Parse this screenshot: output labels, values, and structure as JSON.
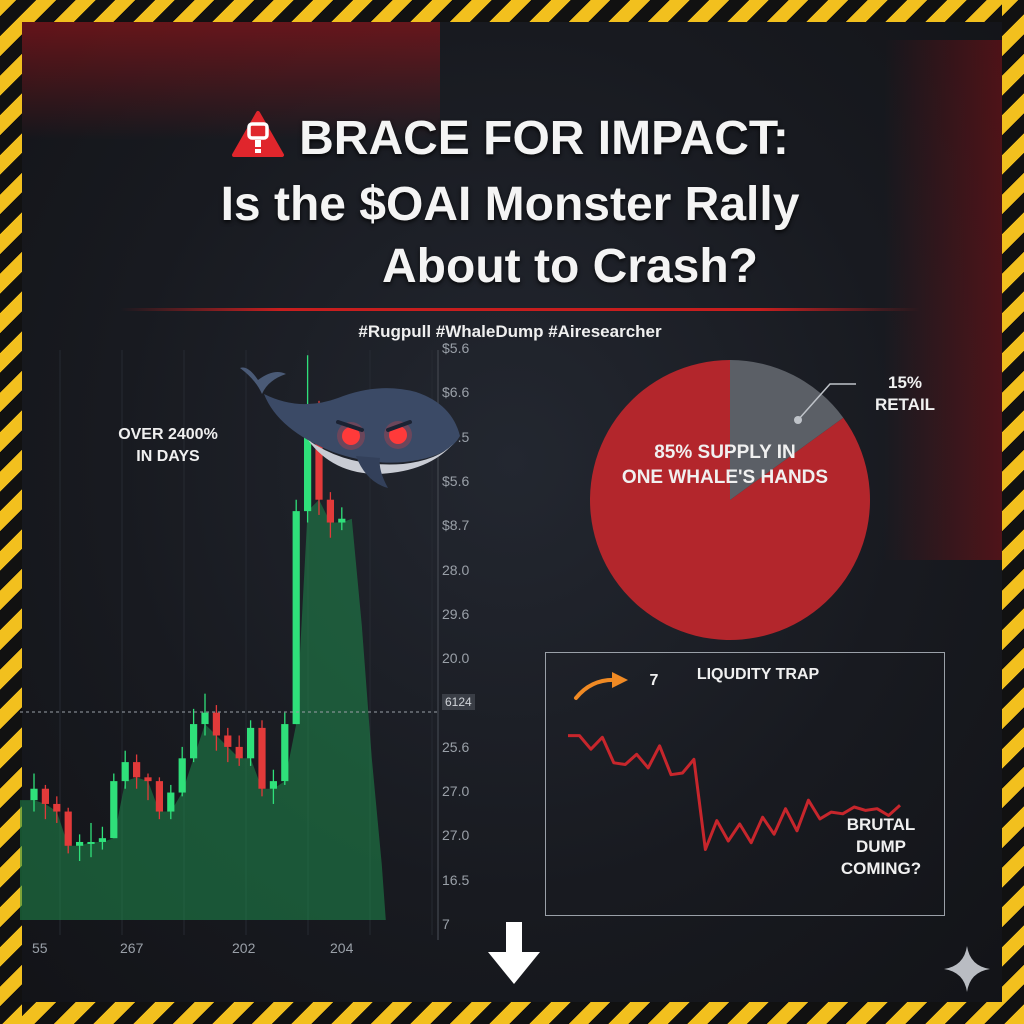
{
  "header": {
    "title_line1": "BRACE FOR IMPACT:",
    "title_line2": "Is the $OAI Monster Rally",
    "title_line3": "About to Crash?",
    "hashtags": "#Rugpull #WhaleDump #Airesearcher",
    "warning_icon": "warning-triangle-icon"
  },
  "colors": {
    "bull": "#2fe07a",
    "bear": "#e23a3a",
    "area": "#1f8a4c",
    "pie_major": "#b3262c",
    "pie_minor": "#5b5f66",
    "tape_yellow": "#f2c01e",
    "trend_line": "#c7262c"
  },
  "chart_data": [
    {
      "type": "candlestick",
      "title": "",
      "annotation": "OVER 2400%\nIN DAYS",
      "price_labels": [
        "$5.6",
        "$6.6",
        "$5.5",
        "$5.6",
        "$8.7",
        "28.0",
        "29.6",
        "20.0",
        "6124",
        "25.6",
        "27.0",
        "27.0",
        "16.5",
        "7"
      ],
      "x_tick_labels": [
        "55",
        "267",
        "202",
        "204"
      ],
      "candles": [
        {
          "o": 2.9,
          "c": 3.2,
          "h": 3.6,
          "l": 2.6
        },
        {
          "o": 3.2,
          "c": 2.8,
          "h": 3.3,
          "l": 2.4
        },
        {
          "o": 2.8,
          "c": 2.6,
          "h": 3.0,
          "l": 2.3
        },
        {
          "o": 2.6,
          "c": 1.7,
          "h": 2.7,
          "l": 1.5
        },
        {
          "o": 1.7,
          "c": 1.8,
          "h": 2.0,
          "l": 1.3
        },
        {
          "o": 1.8,
          "c": 1.8,
          "h": 2.3,
          "l": 1.4
        },
        {
          "o": 1.8,
          "c": 1.9,
          "h": 2.2,
          "l": 1.6
        },
        {
          "o": 1.9,
          "c": 3.4,
          "h": 3.6,
          "l": 1.9
        },
        {
          "o": 3.4,
          "c": 3.9,
          "h": 4.2,
          "l": 3.2
        },
        {
          "o": 3.9,
          "c": 3.5,
          "h": 4.1,
          "l": 3.2
        },
        {
          "o": 3.5,
          "c": 3.4,
          "h": 3.6,
          "l": 2.9
        },
        {
          "o": 3.4,
          "c": 2.6,
          "h": 3.5,
          "l": 2.4
        },
        {
          "o": 2.6,
          "c": 3.1,
          "h": 3.3,
          "l": 2.4
        },
        {
          "o": 3.1,
          "c": 4.0,
          "h": 4.3,
          "l": 3.0
        },
        {
          "o": 4.0,
          "c": 4.9,
          "h": 5.3,
          "l": 3.9
        },
        {
          "o": 4.9,
          "c": 5.2,
          "h": 5.7,
          "l": 4.6
        },
        {
          "o": 5.2,
          "c": 4.6,
          "h": 5.4,
          "l": 4.2
        },
        {
          "o": 4.6,
          "c": 4.3,
          "h": 4.8,
          "l": 3.9
        },
        {
          "o": 4.3,
          "c": 4.0,
          "h": 4.6,
          "l": 3.8
        },
        {
          "o": 4.0,
          "c": 4.8,
          "h": 5.0,
          "l": 3.8
        },
        {
          "o": 4.8,
          "c": 3.2,
          "h": 5.0,
          "l": 3.0
        },
        {
          "o": 3.2,
          "c": 3.4,
          "h": 3.7,
          "l": 2.8
        },
        {
          "o": 3.4,
          "c": 4.9,
          "h": 5.2,
          "l": 3.3
        },
        {
          "o": 4.9,
          "c": 10.5,
          "h": 10.8,
          "l": 4.9
        },
        {
          "o": 10.5,
          "c": 12.8,
          "h": 14.6,
          "l": 10.2
        },
        {
          "o": 12.8,
          "c": 10.8,
          "h": 13.4,
          "l": 10.4
        },
        {
          "o": 10.8,
          "c": 10.2,
          "h": 11.0,
          "l": 9.8
        },
        {
          "o": 10.2,
          "c": 10.3,
          "h": 10.6,
          "l": 10.0
        }
      ],
      "area_decay": [
        10.3,
        7.5,
        4.0,
        1.2
      ]
    },
    {
      "type": "pie",
      "slices": [
        {
          "label": "85% SUPPLY IN\nONE WHALE'S HANDS",
          "value": 85
        },
        {
          "label": "15%\nRETAIL",
          "value": 15
        }
      ]
    },
    {
      "type": "line",
      "title": "LIQUDITY TRAP",
      "marker_label": "7",
      "annotation": "BRUTAL\nDUMP\nCOMING?",
      "values": [
        8.2,
        8.2,
        7.4,
        8.1,
        6.6,
        6.5,
        7.1,
        6.3,
        7.6,
        5.9,
        6.0,
        6.8,
        1.5,
        3.2,
        2.0,
        3.0,
        1.9,
        3.4,
        2.4,
        3.9,
        2.6,
        4.4,
        3.3,
        3.7,
        3.6,
        4.0,
        3.8,
        3.9,
        3.5,
        4.1
      ]
    }
  ]
}
